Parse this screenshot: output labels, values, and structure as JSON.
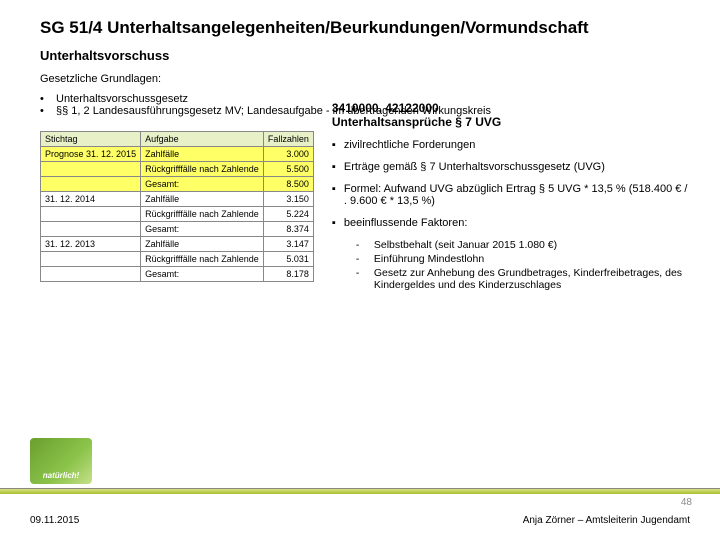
{
  "title": "SG 51/4 Unterhaltsangelegenheiten/Beurkundungen/Vormundschaft",
  "subtitle": "Unterhaltsvorschuss",
  "legal_heading": "Gesetzliche Grundlagen:",
  "laws": [
    "Unterhaltsvorschussgesetz",
    "§§ 1, 2 Landesausführungsgesetz MV; Landesaufgabe - im übertragenden Wirkungskreis"
  ],
  "table": {
    "headers": {
      "c1": "Stichtag",
      "c2": "Aufgabe",
      "c3": "Fallzahlen"
    },
    "rows": [
      {
        "c1": "Prognose 31. 12. 2015",
        "c2": "Zahlfälle",
        "c3": "3.000",
        "hl": true
      },
      {
        "c1": "",
        "c2": "Rückgrifffälle nach Zahlende",
        "c3": "5.500",
        "hl": true
      },
      {
        "c1": "",
        "c2": "Gesamt:",
        "c3": "8.500",
        "hl": true
      },
      {
        "c1": "31. 12. 2014",
        "c2": "Zahlfälle",
        "c3": "3.150"
      },
      {
        "c1": "",
        "c2": "Rückgrifffälle nach Zahlende",
        "c3": "5.224"
      },
      {
        "c1": "",
        "c2": "Gesamt:",
        "c3": "8.374"
      },
      {
        "c1": "31. 12. 2013",
        "c2": "Zahlfälle",
        "c3": "3.147"
      },
      {
        "c1": "",
        "c2": "Rückgrifffälle nach Zahlende",
        "c3": "5.031"
      },
      {
        "c1": "",
        "c2": "Gesamt:",
        "c3": "8.178"
      }
    ]
  },
  "right": {
    "heading_l1": "3410000. 42122000",
    "heading_l2": "Unterhaltsansprüche § 7 UVG",
    "b1": "zivilrechtliche Forderungen",
    "b2": "Erträge gemäß § 7 Unterhaltsvorschussgesetz (UVG)",
    "b3": "Formel: Aufwand UVG abzüglich Ertrag § 5 UVG * 13,5 % (518.400 € / . 9.600 € * 13,5 %)",
    "b4": "beeinflussende Faktoren:",
    "factors": [
      "Selbstbehalt (seit Januar 2015 1.080 €)",
      "Einführung Mindestlohn",
      "Gesetz zur Anhebung des Grundbetrages, Kinderfreibetrages, des Kindergeldes und des Kinderzuschlages"
    ]
  },
  "footer": {
    "date": "09.11.2015",
    "author": "Anja Zörner – Amtsleiterin Jugendamt",
    "page": "48",
    "logo": "natürlich!"
  }
}
